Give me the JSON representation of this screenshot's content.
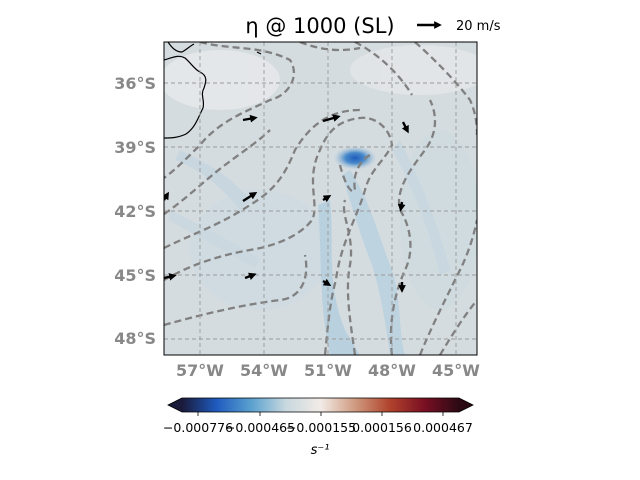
{
  "title": "η @ 1000 (SL)",
  "quiver_key": {
    "label": "20 m/s"
  },
  "map": {
    "lat_labels": [
      "36°S",
      "39°S",
      "42°S",
      "45°S",
      "48°S"
    ],
    "lon_labels": [
      "57°W",
      "54°W",
      "51°W",
      "48°W",
      "45°W"
    ],
    "lat_values": [
      -36,
      -39,
      -42,
      -45,
      -48
    ],
    "lon_values": [
      -57,
      -54,
      -51,
      -48,
      -45
    ],
    "lat_range": [
      -48.8,
      -34.0
    ],
    "lon_range": [
      -58.7,
      -44.0
    ],
    "gridlines": true,
    "field_background": "#d6dde0"
  },
  "colorbar": {
    "ticks": [
      "−0.000776",
      "−0.000465",
      "−0.000155",
      "0.000156",
      "0.000467"
    ],
    "unit_label": "s⁻¹",
    "cmap": [
      "#1a1a3a",
      "#1f5bbf",
      "#5aa1cf",
      "#c8d8df",
      "#f2ebe6",
      "#cf9a80",
      "#b0432c",
      "#7a0f23",
      "#2b0a14"
    ]
  },
  "colors": {
    "contour": "#808080",
    "coast": "#000000",
    "vector": "#000000",
    "blue_feature": "#1d62c4"
  },
  "vectors_units": "m/s"
}
